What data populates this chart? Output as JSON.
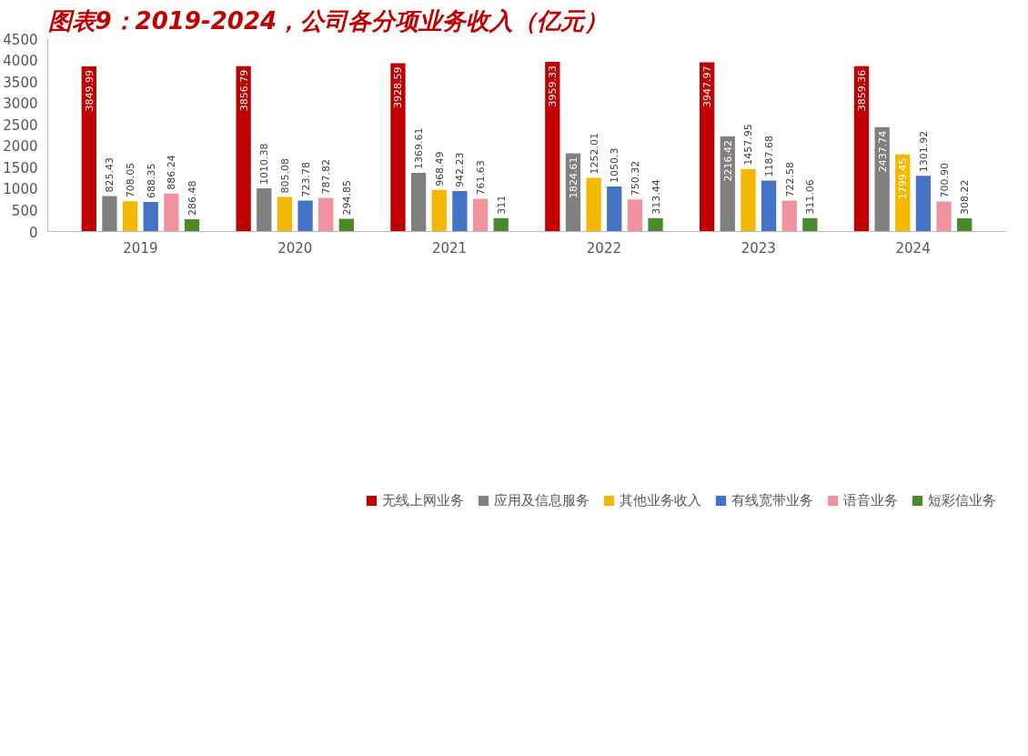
{
  "chart_data": {
    "type": "bar",
    "title": "图表9：2019-2024，公司各分项业务收入（亿元）",
    "categories": [
      "2019",
      "2020",
      "2021",
      "2022",
      "2023",
      "2024"
    ],
    "series": [
      {
        "name": "无线上网业务",
        "color": "#c00000",
        "values": [
          3849.99,
          3856.79,
          3928.59,
          3959.33,
          3947.97,
          3859.36
        ]
      },
      {
        "name": "应用及信息服务",
        "color": "#808080",
        "values": [
          825.43,
          1010.38,
          1369.61,
          1824.61,
          2216.42,
          2437.74
        ]
      },
      {
        "name": "其他业务收入",
        "color": "#f5b800",
        "values": [
          708.05,
          805.08,
          968.49,
          1252.01,
          1457.95,
          1799.45
        ]
      },
      {
        "name": "有线宽带业务",
        "color": "#4472c4",
        "values": [
          688.35,
          723.78,
          942.23,
          1050.3,
          1187.68,
          1301.92
        ]
      },
      {
        "name": "语音业务",
        "color": "#f0939e",
        "values": [
          886.24,
          787.82,
          761.63,
          750.32,
          722.58,
          700.9
        ]
      },
      {
        "name": "短彩信业务",
        "color": "#4a8a2a",
        "values": [
          286.48,
          294.85,
          311,
          313.44,
          311.06,
          308.22
        ]
      }
    ],
    "value_labels": [
      [
        "3849.99",
        "3856.79",
        "3928.59",
        "3959.33",
        "3947.97",
        "3859.36"
      ],
      [
        "825.43",
        "1010.38",
        "1369.61",
        "1824.61",
        "2216.42",
        "2437.74"
      ],
      [
        "708.05",
        "805.08",
        "968.49",
        "1252.01",
        "1457.95",
        "1799.45"
      ],
      [
        "688.35",
        "723.78",
        "942.23",
        "1050.3",
        "1187.68",
        "1301.92"
      ],
      [
        "886.24",
        "787.82",
        "761.63",
        "750.32",
        "722.58",
        "700.90"
      ],
      [
        "286.48",
        "294.85",
        "311",
        "313.44",
        "311.06",
        "308.22"
      ]
    ],
    "ylim": [
      0,
      4500
    ],
    "yticks": [
      0,
      500,
      1000,
      1500,
      2000,
      2500,
      3000,
      3500,
      4000,
      4500
    ],
    "grid": false,
    "legend": "bottom"
  }
}
